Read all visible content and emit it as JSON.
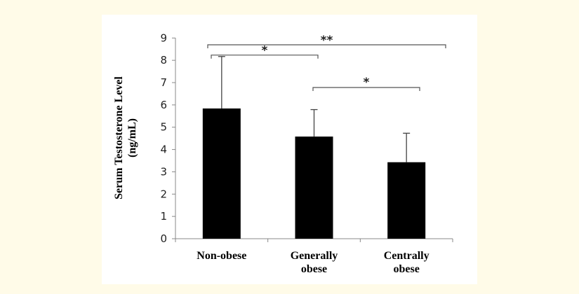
{
  "chart_data": {
    "type": "bar",
    "title": "",
    "ylabel": [
      "Serum Testosterone Level",
      "(ng/mL)"
    ],
    "xlabel": "",
    "categories": [
      [
        "Non-obese"
      ],
      [
        "Generally",
        "obese"
      ],
      [
        "Centrally",
        "obese"
      ]
    ],
    "values": [
      5.84,
      4.58,
      3.43
    ],
    "error_upper": [
      8.17,
      5.79,
      4.73
    ],
    "ylim": [
      0,
      9
    ],
    "yticks": [
      0,
      1,
      2,
      3,
      4,
      5,
      6,
      7,
      8,
      9
    ],
    "grid": false,
    "bar_color": "#000000",
    "significance": [
      {
        "from": 0,
        "to": 2,
        "label": "**"
      },
      {
        "from": 0,
        "to": 1,
        "label": "*"
      },
      {
        "from": 1,
        "to": 2,
        "label": "*"
      }
    ]
  }
}
